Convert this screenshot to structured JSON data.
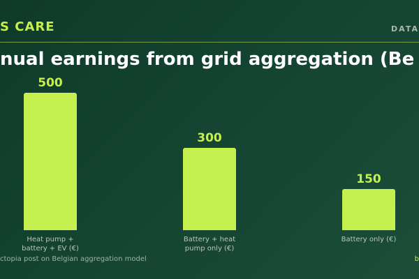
{
  "header": {
    "brand": "S CARE",
    "tag": "DATA"
  },
  "chart_data": {
    "type": "bar",
    "title": "nual earnings from grid aggregation (Be",
    "categories": [
      "Heat pump + battery + EV (€)",
      "Battery + heat pump only (€)",
      "Battery only (€)"
    ],
    "values": [
      500,
      300,
      150
    ],
    "color": "#c5f04d"
  },
  "footer": {
    "source": "ctopia post on Belgian aggregation model",
    "right": "b"
  }
}
